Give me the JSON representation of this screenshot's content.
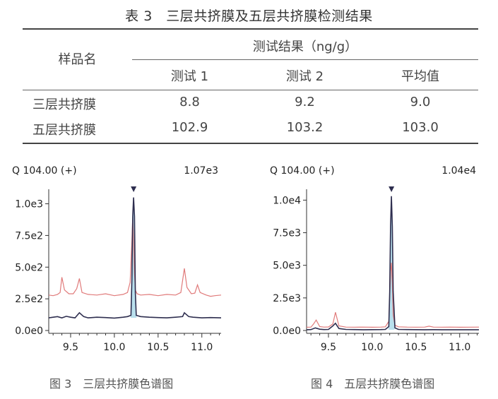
{
  "table": {
    "title": "表 3　三层共挤膜及五层共挤膜检测结果",
    "header_sample": "样品名",
    "header_group": "测试结果（ng/g）",
    "columns": [
      "测试 1",
      "测试 2",
      "平均值"
    ],
    "rows": [
      {
        "name": "三层共挤膜",
        "values": [
          "8.8",
          "9.2",
          "9.0"
        ]
      },
      {
        "name": "五层共挤膜",
        "values": [
          "102.9",
          "103.2",
          "103.0"
        ]
      }
    ]
  },
  "chart_data": [
    {
      "type": "line",
      "label_left": "Q 104.00 (+)",
      "label_right": "1.07e3",
      "ylim": [
        0,
        1070
      ],
      "yticks": [
        0,
        250,
        500,
        750,
        1000
      ],
      "ytick_labels": [
        "0.0e0",
        "2.5e2",
        "5.0e2",
        "7.5e2",
        "1.0e3"
      ],
      "xlim": [
        9.25,
        11.22
      ],
      "xticks": [
        9.5,
        10.0,
        10.5,
        11.0
      ],
      "xtick_labels": [
        "9.5",
        "10.0",
        "10.5",
        "11.0"
      ],
      "peak_rt": 10.22,
      "series": [
        {
          "color": "#e07a7a",
          "x": [
            9.25,
            9.3,
            9.35,
            9.38,
            9.4,
            9.43,
            9.48,
            9.53,
            9.57,
            9.6,
            9.63,
            9.7,
            9.8,
            9.9,
            10.0,
            10.1,
            10.15,
            10.18,
            10.2,
            10.21,
            10.22,
            10.23,
            10.24,
            10.26,
            10.3,
            10.4,
            10.5,
            10.6,
            10.7,
            10.76,
            10.8,
            10.83,
            10.88,
            10.92,
            10.95,
            10.98,
            11.05,
            11.1,
            11.15,
            11.22
          ],
          "y": [
            280,
            275,
            285,
            300,
            420,
            320,
            290,
            290,
            330,
            410,
            300,
            285,
            280,
            290,
            275,
            285,
            300,
            380,
            700,
            900,
            700,
            450,
            320,
            290,
            280,
            285,
            275,
            285,
            280,
            300,
            490,
            340,
            290,
            295,
            360,
            300,
            280,
            270,
            275,
            280
          ]
        },
        {
          "color": "#2e2e4f",
          "x": [
            9.25,
            9.3,
            9.35,
            9.4,
            9.45,
            9.5,
            9.55,
            9.6,
            9.65,
            9.7,
            9.8,
            9.9,
            10.0,
            10.1,
            10.15,
            10.19,
            10.2,
            10.21,
            10.22,
            10.23,
            10.24,
            10.25,
            10.3,
            10.4,
            10.5,
            10.6,
            10.7,
            10.78,
            10.8,
            10.85,
            10.9,
            11.0,
            11.1,
            11.22
          ],
          "y": [
            100,
            105,
            110,
            100,
            112,
            105,
            100,
            140,
            110,
            100,
            105,
            102,
            98,
            105,
            110,
            120,
            400,
            900,
            1050,
            900,
            300,
            120,
            110,
            105,
            102,
            100,
            105,
            110,
            140,
            110,
            105,
            100,
            102,
            100
          ]
        }
      ]
    },
    {
      "type": "line",
      "label_left": "Q 104.00 (+)",
      "label_right": "1.04e4",
      "ylim": [
        0,
        10400
      ],
      "yticks": [
        0,
        2500,
        5000,
        7500,
        10000
      ],
      "ytick_labels": [
        "0.0e0",
        "2.5e3",
        "5.0e3",
        "7.5e3",
        "1.0e4"
      ],
      "xlim": [
        9.25,
        11.22
      ],
      "xticks": [
        9.5,
        10.0,
        10.5,
        11.0
      ],
      "xtick_labels": [
        "9.5",
        "10.0",
        "10.5",
        "11.0"
      ],
      "peak_rt": 10.22,
      "series": [
        {
          "color": "#e07a7a",
          "x": [
            9.25,
            9.3,
            9.33,
            9.36,
            9.4,
            9.45,
            9.5,
            9.55,
            9.58,
            9.62,
            9.7,
            9.8,
            9.9,
            10.0,
            10.1,
            10.15,
            10.19,
            10.2,
            10.21,
            10.22,
            10.23,
            10.24,
            10.26,
            10.3,
            10.4,
            10.5,
            10.6,
            10.65,
            10.7,
            10.8,
            10.9,
            11.0,
            11.1,
            11.22
          ],
          "y": [
            250,
            260,
            500,
            800,
            300,
            260,
            270,
            500,
            1400,
            350,
            260,
            255,
            260,
            250,
            260,
            280,
            700,
            2500,
            4500,
            5200,
            3500,
            1200,
            400,
            280,
            260,
            255,
            260,
            330,
            260,
            255,
            260,
            250,
            255,
            260
          ]
        },
        {
          "color": "#2e2e4f",
          "x": [
            9.25,
            9.3,
            9.35,
            9.4,
            9.45,
            9.5,
            9.55,
            9.58,
            9.62,
            9.7,
            9.8,
            9.9,
            10.0,
            10.1,
            10.15,
            10.19,
            10.2,
            10.21,
            10.22,
            10.23,
            10.24,
            10.26,
            10.3,
            10.4,
            10.5,
            10.6,
            10.7,
            10.8,
            11.0,
            11.22
          ],
          "y": [
            60,
            70,
            200,
            100,
            70,
            80,
            350,
            550,
            150,
            80,
            70,
            60,
            65,
            70,
            80,
            300,
            3000,
            8000,
            10300,
            8000,
            3000,
            200,
            80,
            70,
            65,
            60,
            65,
            60,
            60,
            60
          ]
        }
      ]
    }
  ],
  "captions": [
    "图 3　三层共挤膜色谱图",
    "图 4　五层共挤膜色谱图"
  ]
}
